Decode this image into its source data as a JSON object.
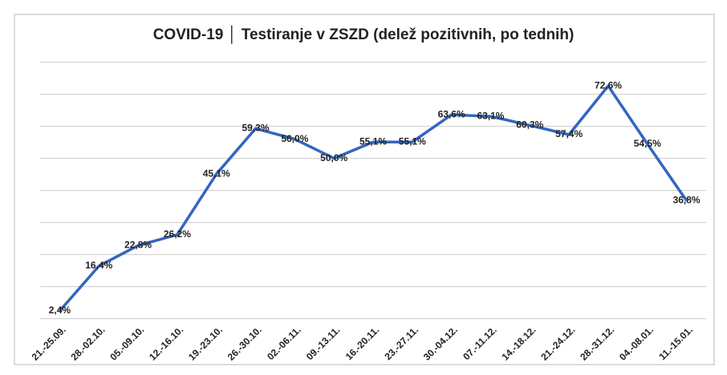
{
  "chart_data": {
    "type": "line",
    "title": "COVID-19 │ Testiranje v ZSZD (delež pozitivnih, po tednih)",
    "categories": [
      "21.-25.09.",
      "28.-02.10.",
      "05.-09.10.",
      "12.-16.10.",
      "19.-23.10.",
      "26.-30.10.",
      "02.-06.11.",
      "09.-13.11.",
      "16.-20.11.",
      "23.-27.11.",
      "30.-04.12.",
      "07.-11.12.",
      "14.-18.12.",
      "21.-24.12.",
      "28.-31.12.",
      "04.-08.01.",
      "11.-15.01."
    ],
    "values": [
      2.4,
      16.4,
      22.8,
      26.2,
      45.1,
      59.3,
      56.0,
      50.0,
      55.1,
      55.1,
      63.6,
      63.1,
      60.3,
      57.4,
      72.6,
      54.5,
      36.8
    ],
    "value_labels": [
      "2,4%",
      "16,4%",
      "22,8%",
      "26,2%",
      "45,1%",
      "59,3%",
      "56,0%",
      "50,0%",
      "55,1%",
      "55,1%",
      "63,6%",
      "63,1%",
      "60,3%",
      "57,4%",
      "72,6%",
      "54,5%",
      "36,8%"
    ],
    "color": "#3366c0",
    "ylim": [
      0,
      80
    ],
    "yticks": [
      0,
      10,
      20,
      30,
      40,
      50,
      60,
      70,
      80
    ],
    "grid": true
  }
}
